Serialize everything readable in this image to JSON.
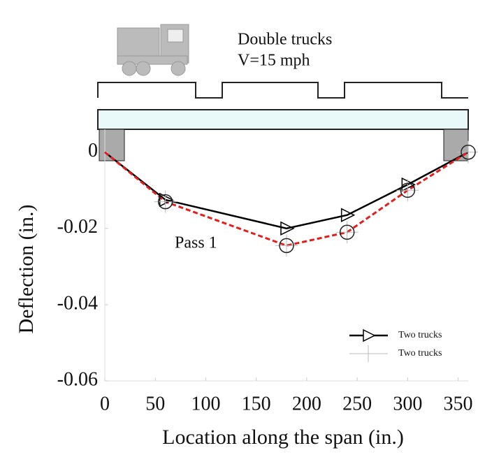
{
  "chart_data": {
    "type": "line",
    "annotations": [
      "Double trucks",
      "V=15 mph",
      "Pass 1"
    ],
    "x_label": "Location along the span (in.)",
    "y_label": "Deflection (in.)",
    "x": [
      0,
      60,
      180,
      240,
      300,
      360
    ],
    "series": [
      {
        "name": "Two trucks",
        "color": "#000000",
        "marker": "triangle",
        "values": [
          0,
          -0.0125,
          -0.02,
          -0.0165,
          -0.0085,
          0
        ]
      },
      {
        "name": "Two trucks",
        "color": "#e02020",
        "marker": "circle",
        "values": [
          0,
          -0.013,
          -0.0245,
          -0.021,
          -0.01,
          0
        ]
      }
    ],
    "xlim": [
      0,
      360
    ],
    "ylim": [
      -0.06,
      0.006
    ],
    "xticks": [
      0,
      50,
      100,
      150,
      200,
      250,
      300,
      350
    ],
    "yticks": [
      0,
      -0.02,
      -0.04,
      -0.06
    ],
    "legend": "lower-right"
  }
}
